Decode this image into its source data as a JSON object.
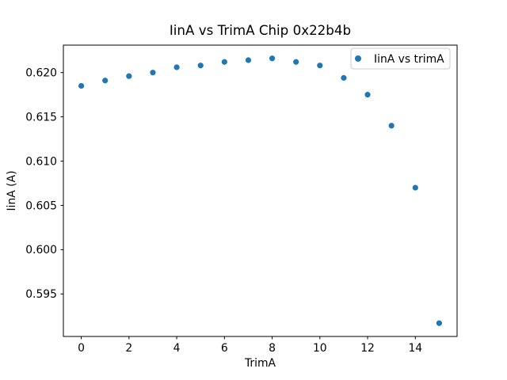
{
  "figure": {
    "background": "#ffffff",
    "frame_color": "#000000"
  },
  "chart_data": {
    "type": "scatter",
    "title": "IinA vs TrimA Chip 0x22b4b",
    "xlabel": "TrimA",
    "ylabel": "IinA (A)",
    "legend": {
      "position": "upper right",
      "entries": [
        {
          "label": "IinA vs trimA",
          "marker": "dot",
          "marker_color": "#1f77b4"
        }
      ]
    },
    "x": [
      0,
      1,
      2,
      3,
      4,
      5,
      6,
      7,
      8,
      9,
      10,
      11,
      12,
      13,
      14,
      15
    ],
    "y": [
      0.6185,
      0.6191,
      0.6196,
      0.62,
      0.6206,
      0.6208,
      0.6212,
      0.6214,
      0.6216,
      0.6212,
      0.6208,
      0.6194,
      0.6175,
      0.614,
      0.607,
      0.5917
    ],
    "xlim": [
      -0.75,
      15.75
    ],
    "ylim": [
      0.5902,
      0.6231
    ],
    "xticks": [
      0,
      2,
      4,
      6,
      8,
      10,
      12,
      14
    ],
    "yticks": [
      0.595,
      0.6,
      0.605,
      0.61,
      0.615,
      0.62
    ],
    "ytick_labels": [
      "0.595",
      "0.600",
      "0.605",
      "0.610",
      "0.615",
      "0.620"
    ],
    "grid": false,
    "marker_color": "#1f77b4"
  }
}
